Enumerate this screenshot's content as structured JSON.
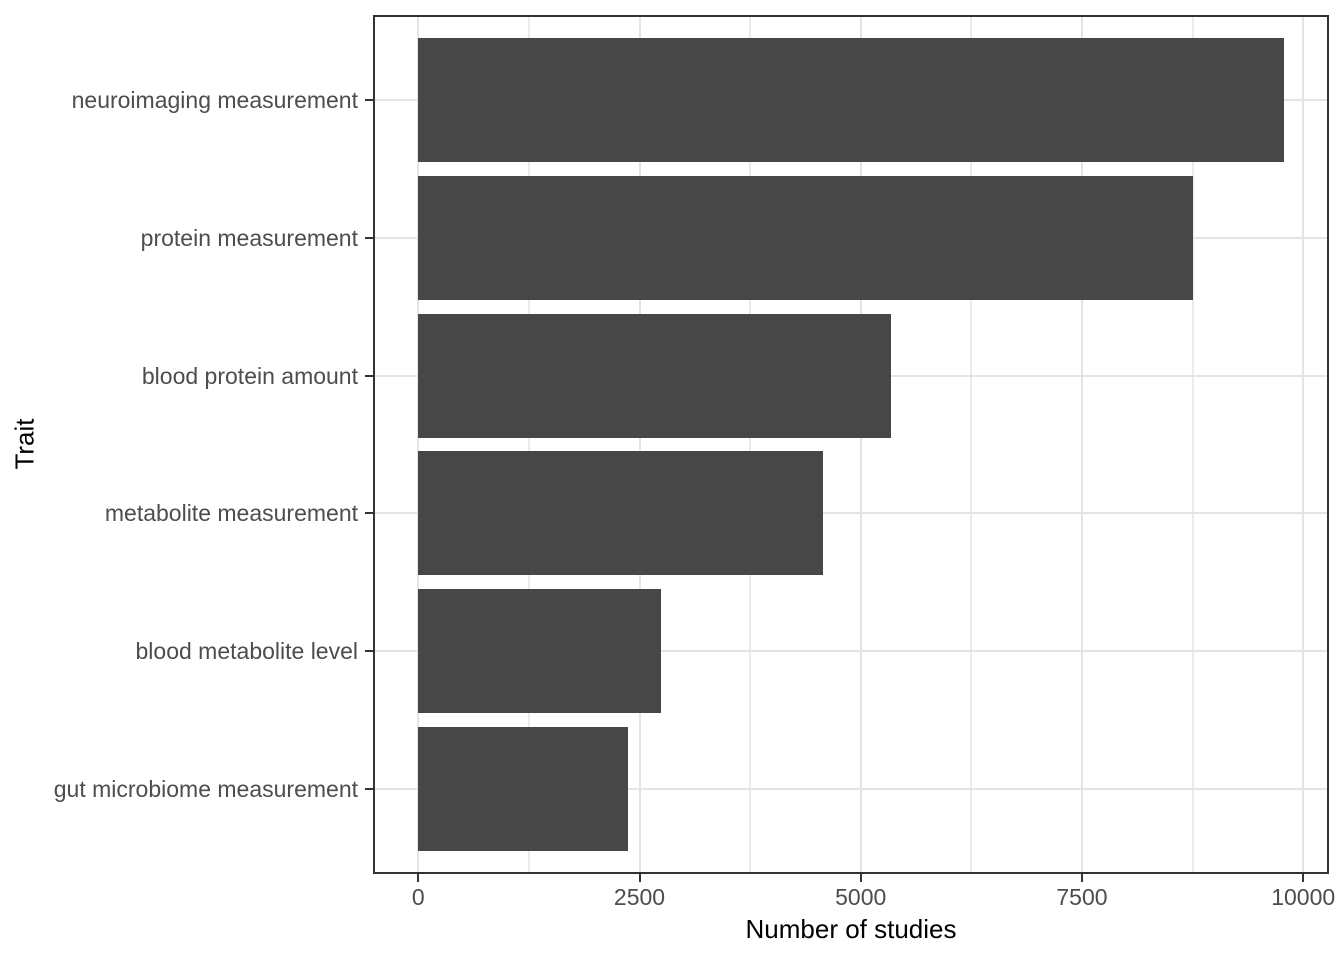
{
  "chart_data": {
    "type": "bar",
    "orientation": "horizontal",
    "title": "",
    "xlabel": "Number of studies",
    "ylabel": "Trait",
    "categories": [
      "neuroimaging measurement",
      "protein measurement",
      "blood protein amount",
      "metabolite measurement",
      "blood metabolite level",
      "gut microbiome measurement"
    ],
    "values": [
      9780,
      8760,
      5340,
      4570,
      2740,
      2370
    ],
    "x_major_ticks": [
      0,
      2500,
      5000,
      7500,
      10000
    ],
    "x_minor_gridlines": [
      1250,
      3750,
      6250,
      8750
    ],
    "xlim": [
      -489,
      10269
    ],
    "grid": "major and minor vertical gridlines, major horizontal gridlines at category centers",
    "legend": "none",
    "bar_direction": "descending top to bottom"
  },
  "colors": {
    "background": "#ffffff",
    "bar_fill": "#474747",
    "panel_border": "#333333",
    "axis_tick": "#333333",
    "grid_major": "#e4e4e4",
    "grid_minor": "#ebebeb",
    "axis_text": "#4d4d4d",
    "axis_title": "#000000"
  }
}
